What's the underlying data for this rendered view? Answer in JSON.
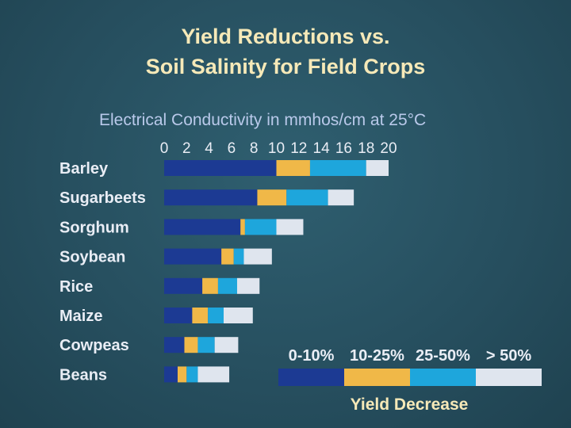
{
  "title_line1": "Yield Reductions vs.",
  "title_line2": "Soil Salinity for Field Crops",
  "chart_data": {
    "type": "bar",
    "orientation": "horizontal",
    "stacked": true,
    "xlabel": "Electrical Conductivity in mmhos/cm at 25°C",
    "xlim": [
      0,
      20
    ],
    "xticks": [
      0,
      2,
      4,
      6,
      8,
      10,
      12,
      14,
      16,
      18,
      20
    ],
    "categories": [
      "Barley",
      "Sugarbeets",
      "Sorghum",
      "Soybean",
      "Rice",
      "Maize",
      "Cowpeas",
      "Beans"
    ],
    "series": [
      {
        "name": "0-10%",
        "color": "#1c3a93",
        "values": [
          10,
          8.3,
          6.8,
          5.1,
          3.4,
          2.5,
          1.8,
          1.2
        ]
      },
      {
        "name": "10-25%",
        "color": "#f0b848",
        "values": [
          3,
          2.6,
          0.4,
          1.1,
          1.4,
          1.4,
          1.2,
          0.8
        ]
      },
      {
        "name": "25-50%",
        "color": "#1ea6dc",
        "values": [
          5,
          3.7,
          2.8,
          0.9,
          1.7,
          1.4,
          1.5,
          1.0
        ]
      },
      {
        "name": "> 50%",
        "color": "#dfe5ee",
        "values": [
          2,
          2.3,
          2.4,
          2.5,
          2.0,
          2.6,
          2.1,
          2.8
        ]
      }
    ],
    "legend_title": "Yield Decrease",
    "legend_position": "bottom-right"
  }
}
